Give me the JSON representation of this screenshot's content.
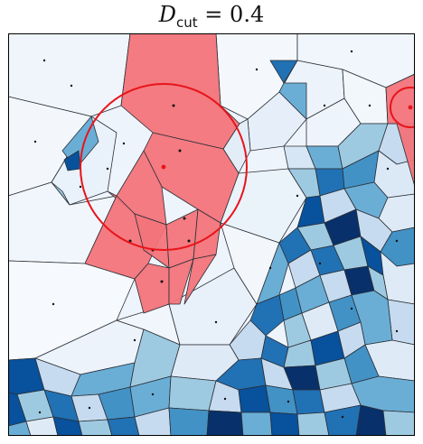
{
  "title": {
    "symbol": "D",
    "subscript": "cut",
    "relation": " = ",
    "value": "0.4"
  },
  "figure": {
    "panel_type": "voronoi-tessellation",
    "colormap": "Blues",
    "highlight_color": "#f2747a",
    "circle_color": "#e8141b",
    "background_cell_color": "#eef4fb",
    "edge_color": "#2b2f36"
  }
}
